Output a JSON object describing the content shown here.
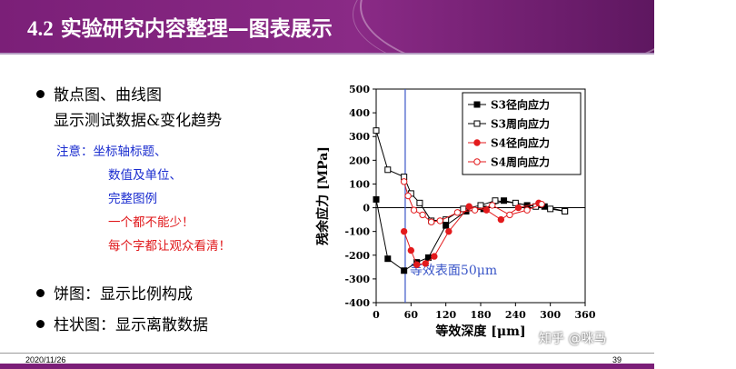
{
  "slide": {
    "title_num": "4.2",
    "title_text": "实验研究内容整理—图表展示",
    "bullets": {
      "b1_line1": "散点图、曲线图",
      "b1_line2": "显示测试数据&变化趋势",
      "b2": "饼图：显示比例构成",
      "b3": "柱状图：显示离散数据"
    },
    "notes": {
      "prefix": "注意：",
      "n1": "坐标轴标题、",
      "n2": "数值及单位、",
      "n3": "完整图例",
      "n4": "一个都不能少！",
      "n5": "每个字都让观众看清！"
    },
    "date": "2020/11/26",
    "page": "39",
    "watermark": "知乎 @咪马"
  },
  "colors": {
    "brand": "#7b1f78",
    "note_blue": "#1a2ccf",
    "note_red": "#e0181b",
    "series_red": "#e31a1c",
    "marker_line": "#3a56c8"
  },
  "chart_data": {
    "type": "line",
    "xlabel": "等效深度 [μm]",
    "ylabel": "残余应力 [MPa]",
    "xlim": [
      0,
      360
    ],
    "ylim": [
      -400,
      500
    ],
    "xticks": [
      0,
      60,
      120,
      180,
      240,
      300,
      360
    ],
    "yticks": [
      500,
      400,
      300,
      200,
      100,
      0,
      -100,
      -200,
      -300,
      -400
    ],
    "xtick_labels": [
      "0",
      "60",
      "120",
      "180",
      "240",
      "300",
      "360"
    ],
    "ytick_labels": [
      "500",
      "400",
      "300",
      "200",
      "100",
      "0",
      "-100",
      "-200",
      "-300",
      "-400"
    ],
    "grid": false,
    "legend_position": "top-right",
    "annotation": {
      "text": "等效表面50μm",
      "x": 50
    },
    "series": [
      {
        "name": "S3径向应力",
        "color": "#000000",
        "marker": "filled-square",
        "x": [
          0,
          20,
          48,
          70,
          90,
          120,
          155,
          185,
          220,
          260,
          290,
          325
        ],
        "y": [
          35,
          -215,
          -265,
          -230,
          -210,
          -75,
          -15,
          -5,
          30,
          10,
          5,
          -15
        ]
      },
      {
        "name": "S3周向应力",
        "color": "#000000",
        "marker": "open-square",
        "x": [
          0,
          20,
          48,
          60,
          75,
          95,
          120,
          150,
          180,
          205,
          240,
          275,
          300,
          325
        ],
        "y": [
          325,
          160,
          130,
          60,
          20,
          -55,
          -50,
          -5,
          10,
          30,
          20,
          5,
          -5,
          -15
        ]
      },
      {
        "name": "S4径向应力",
        "color": "#e31a1c",
        "marker": "filled-circle",
        "x": [
          48,
          60,
          70,
          85,
          100,
          125,
          160,
          190,
          215,
          245,
          280
        ],
        "y": [
          -100,
          -180,
          -240,
          -235,
          -205,
          -100,
          5,
          -10,
          -50,
          0,
          20
        ]
      },
      {
        "name": "S4周向应力",
        "color": "#e31a1c",
        "marker": "open-circle",
        "x": [
          48,
          55,
          65,
          80,
          95,
          110,
          140,
          170,
          200,
          230,
          260,
          285
        ],
        "y": [
          110,
          50,
          -10,
          -30,
          -60,
          -55,
          -20,
          -10,
          10,
          -30,
          -10,
          15
        ]
      }
    ]
  }
}
